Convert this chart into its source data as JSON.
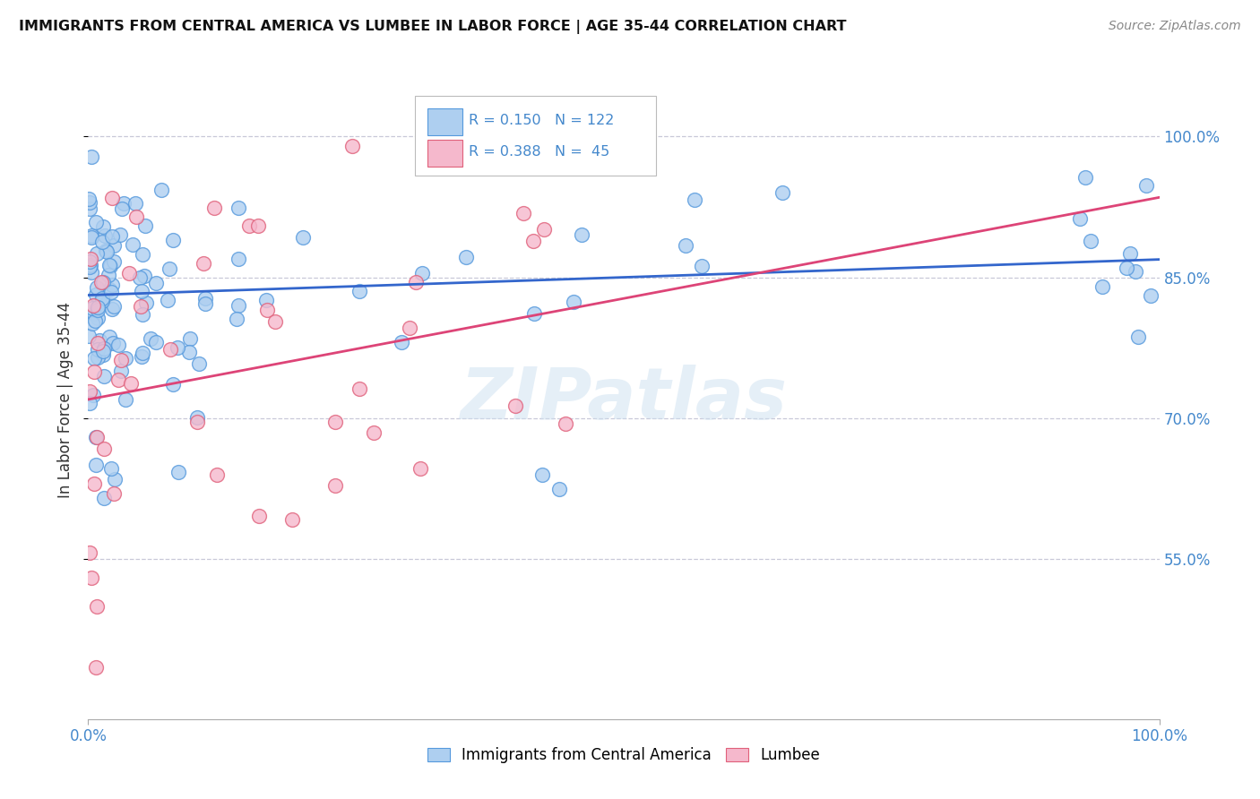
{
  "title": "IMMIGRANTS FROM CENTRAL AMERICA VS LUMBEE IN LABOR FORCE | AGE 35-44 CORRELATION CHART",
  "source": "Source: ZipAtlas.com",
  "ylabel": "In Labor Force | Age 35-44",
  "ytick_labels": [
    "55.0%",
    "70.0%",
    "85.0%",
    "100.0%"
  ],
  "ytick_values": [
    0.55,
    0.7,
    0.85,
    1.0
  ],
  "xlim": [
    0.0,
    1.0
  ],
  "ylim": [
    0.38,
    1.06
  ],
  "legend_label1": "Immigrants from Central America",
  "legend_label2": "Lumbee",
  "blue_fill": "#aecff0",
  "blue_edge": "#5599dd",
  "pink_fill": "#f5b8cc",
  "pink_edge": "#e0607a",
  "blue_line": "#3366cc",
  "pink_line": "#dd4477",
  "title_color": "#111111",
  "axis_color": "#4488cc",
  "watermark": "ZIPatlas",
  "blue_trend_x0": 0.0,
  "blue_trend_y0": 0.831,
  "blue_trend_x1": 1.0,
  "blue_trend_y1": 0.869,
  "pink_trend_x0": 0.0,
  "pink_trend_y0": 0.72,
  "pink_trend_x1": 1.0,
  "pink_trend_y1": 0.935
}
